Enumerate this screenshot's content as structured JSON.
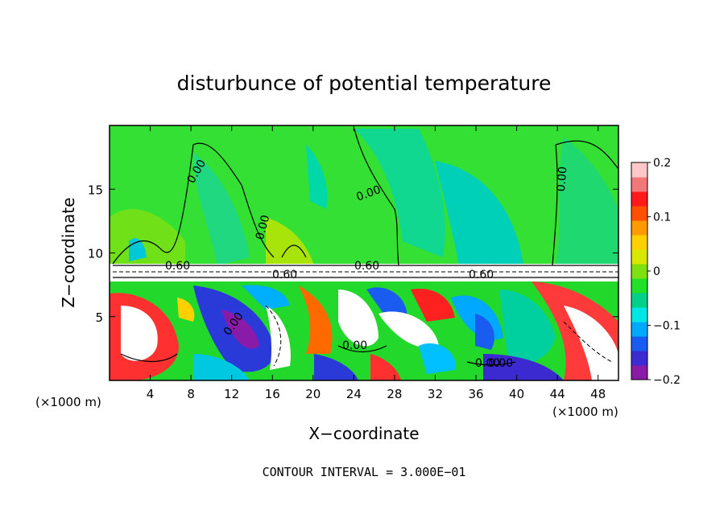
{
  "chart_data": {
    "type": "heatmap",
    "title": "disturbunce of potential temperature",
    "xlabel": "X−coordinate",
    "ylabel": "Z−coordinate",
    "x_unit_label": "(×1000 m)",
    "y_unit_label": "(×1000 m)",
    "xlim": [
      0,
      50
    ],
    "ylim": [
      0,
      20
    ],
    "x_ticks": [
      "4",
      "8",
      "12",
      "16",
      "20",
      "24",
      "28",
      "32",
      "36",
      "40",
      "44",
      "48"
    ],
    "y_ticks": [
      "5",
      "10",
      "15"
    ],
    "colorbar": {
      "range": [
        -0.2,
        0.2
      ],
      "tick_labels": [
        "0.2",
        "0.1",
        "0",
        "−0.1",
        "−0.2"
      ],
      "tick_values": [
        0.2,
        0.1,
        0,
        -0.1,
        -0.2
      ],
      "colors": [
        "#8b1aa8",
        "#3b2bd1",
        "#1a5cf0",
        "#00a8ff",
        "#00e6e6",
        "#00d08a",
        "#22e02a",
        "#7ee010",
        "#d8e800",
        "#ffd000",
        "#ff9a00",
        "#ff5000",
        "#ff1a1a",
        "#f07878",
        "#ffc8c8"
      ]
    },
    "contour_labels": [
      "0.00",
      "0.00",
      "0.00",
      "0.00",
      "0.00",
      "0.00",
      "0.60",
      "0.60",
      "0.60",
      "0.60",
      "0.00",
      "0.00"
    ],
    "footer": "CONTOUR INTERVAL = 3.000E−01"
  }
}
